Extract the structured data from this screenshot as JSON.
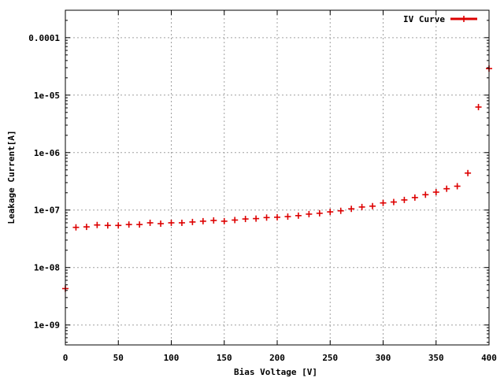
{
  "chart_data": {
    "type": "scatter",
    "title": "",
    "xlabel": "Bias Voltage [V]",
    "ylabel": "Leakage Current[A]",
    "xlim": [
      0,
      400
    ],
    "ylim": [
      4.5e-10,
      0.0003
    ],
    "yscale": "log",
    "grid": true,
    "legend_position": "top-right",
    "x_ticks": [
      {
        "value": 0,
        "label": "0"
      },
      {
        "value": 50,
        "label": "50"
      },
      {
        "value": 100,
        "label": "100"
      },
      {
        "value": 150,
        "label": "150"
      },
      {
        "value": 200,
        "label": "200"
      },
      {
        "value": 250,
        "label": "250"
      },
      {
        "value": 300,
        "label": "300"
      },
      {
        "value": 350,
        "label": "350"
      },
      {
        "value": 400,
        "label": "400"
      }
    ],
    "y_ticks": [
      {
        "value": 1e-09,
        "label": "1e-09"
      },
      {
        "value": 1e-08,
        "label": "1e-08"
      },
      {
        "value": 1e-07,
        "label": "1e-07"
      },
      {
        "value": 1e-06,
        "label": "1e-06"
      },
      {
        "value": 1e-05,
        "label": "1e-05"
      },
      {
        "value": 0.0001,
        "label": "0.0001"
      }
    ],
    "series": [
      {
        "name": "IV Curve",
        "color": "#dd0000",
        "marker": "plus",
        "x": [
          0,
          10,
          20,
          30,
          40,
          50,
          60,
          70,
          80,
          90,
          100,
          110,
          120,
          130,
          140,
          150,
          160,
          170,
          180,
          190,
          200,
          210,
          220,
          230,
          240,
          250,
          260,
          270,
          280,
          290,
          300,
          310,
          320,
          330,
          340,
          350,
          360,
          370,
          380,
          390,
          400
        ],
        "y": [
          4.3e-09,
          5e-08,
          5.1e-08,
          5.5e-08,
          5.4e-08,
          5.4e-08,
          5.6e-08,
          5.6e-08,
          6e-08,
          5.8e-08,
          6e-08,
          6e-08,
          6.2e-08,
          6.4e-08,
          6.6e-08,
          6.4e-08,
          6.7e-08,
          7e-08,
          7.1e-08,
          7.4e-08,
          7.5e-08,
          7.7e-08,
          8e-08,
          8.5e-08,
          8.8e-08,
          9.3e-08,
          9.7e-08,
          1.05e-07,
          1.13e-07,
          1.17e-07,
          1.33e-07,
          1.38e-07,
          1.5e-07,
          1.65e-07,
          1.85e-07,
          2.05e-07,
          2.35e-07,
          2.6e-07,
          4.4e-07,
          6.2e-06,
          2.9e-05
        ]
      }
    ]
  }
}
